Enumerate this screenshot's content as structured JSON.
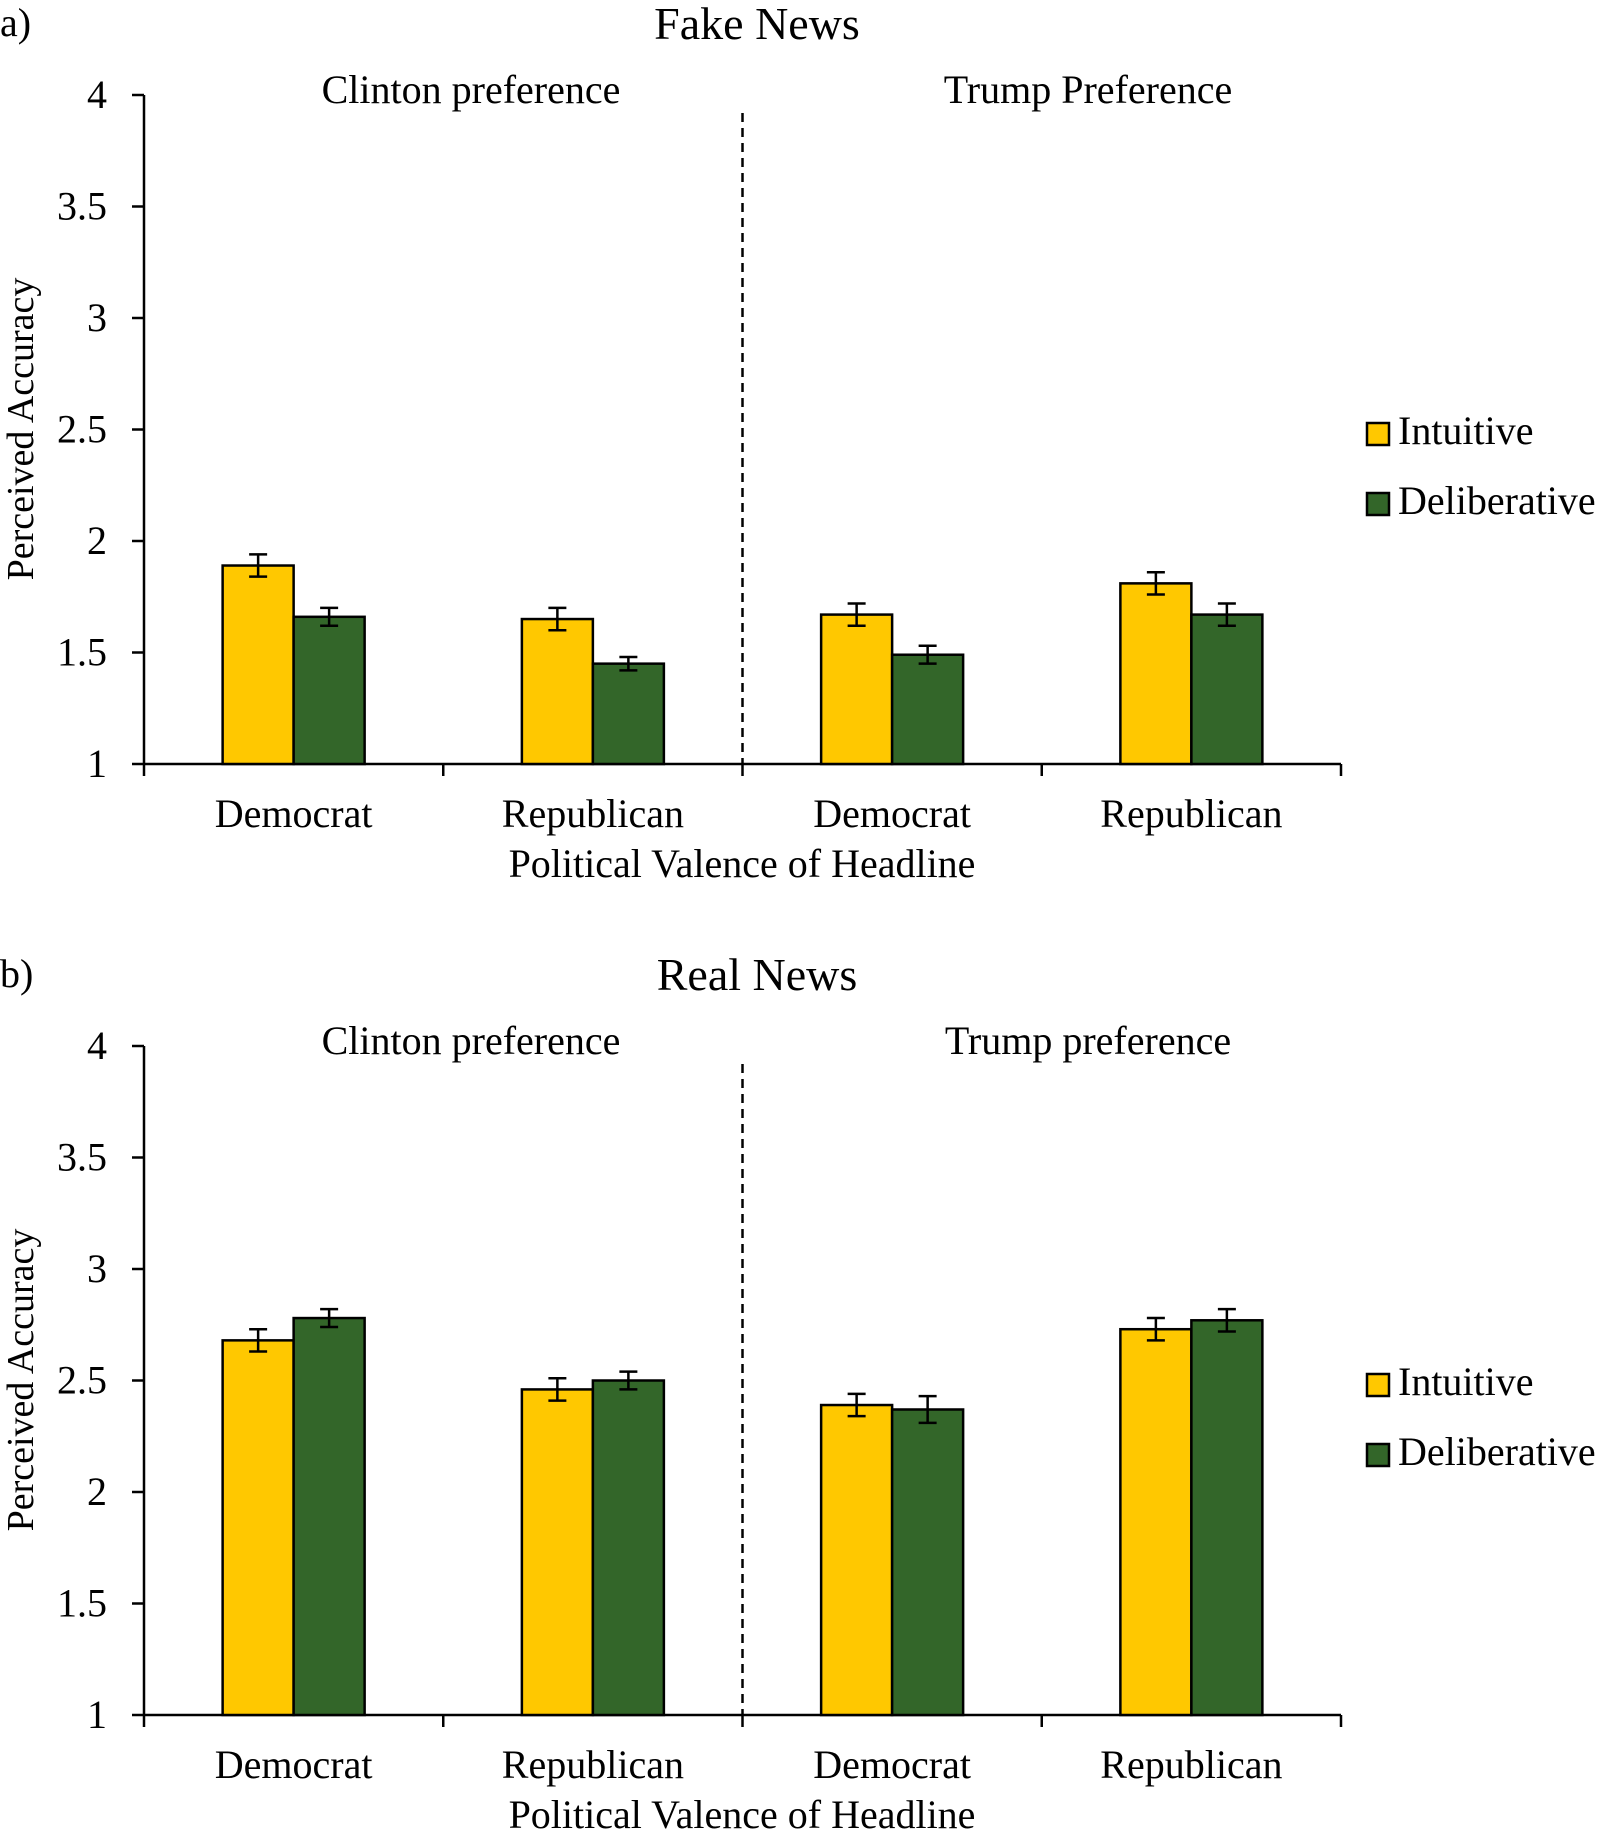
{
  "colors": {
    "intuitive": "#FFC800",
    "deliberative": "#336629",
    "axis": "#000000"
  },
  "chart_data": [
    {
      "type": "bar",
      "panel_label": "a)",
      "title": "Fake News",
      "xlabel": "Political Valence of Headline",
      "ylabel": "Perceived Accuracy",
      "ylim": [
        1,
        4
      ],
      "yticks": [
        "1",
        "1.5",
        "2",
        "2.5",
        "3",
        "3.5",
        "4"
      ],
      "groups": [
        "Clinton preference",
        "Trump Preference"
      ],
      "categories": [
        "Democrat",
        "Republican",
        "Democrat",
        "Republican"
      ],
      "category_group": [
        0,
        0,
        1,
        1
      ],
      "series": [
        {
          "name": "Intuitive",
          "values": [
            1.89,
            1.65,
            1.67,
            1.81
          ],
          "errors": [
            0.05,
            0.05,
            0.05,
            0.05
          ]
        },
        {
          "name": "Deliberative",
          "values": [
            1.66,
            1.45,
            1.49,
            1.67
          ],
          "errors": [
            0.04,
            0.03,
            0.04,
            0.05
          ]
        }
      ],
      "legend_position": "right",
      "grid": false
    },
    {
      "type": "bar",
      "panel_label": "b)",
      "title": "Real News",
      "xlabel": "Political Valence of Headline",
      "ylabel": "Perceived Accuracy",
      "ylim": [
        1,
        4
      ],
      "yticks": [
        "1",
        "1.5",
        "2",
        "2.5",
        "3",
        "3.5",
        "4"
      ],
      "groups": [
        "Clinton preference",
        "Trump preference"
      ],
      "categories": [
        "Democrat",
        "Republican",
        "Democrat",
        "Republican"
      ],
      "category_group": [
        0,
        0,
        1,
        1
      ],
      "series": [
        {
          "name": "Intuitive",
          "values": [
            2.68,
            2.46,
            2.39,
            2.73
          ],
          "errors": [
            0.05,
            0.05,
            0.05,
            0.05
          ]
        },
        {
          "name": "Deliberative",
          "values": [
            2.78,
            2.5,
            2.37,
            2.77
          ],
          "errors": [
            0.04,
            0.04,
            0.06,
            0.05
          ]
        }
      ],
      "legend_position": "right",
      "grid": false
    }
  ]
}
